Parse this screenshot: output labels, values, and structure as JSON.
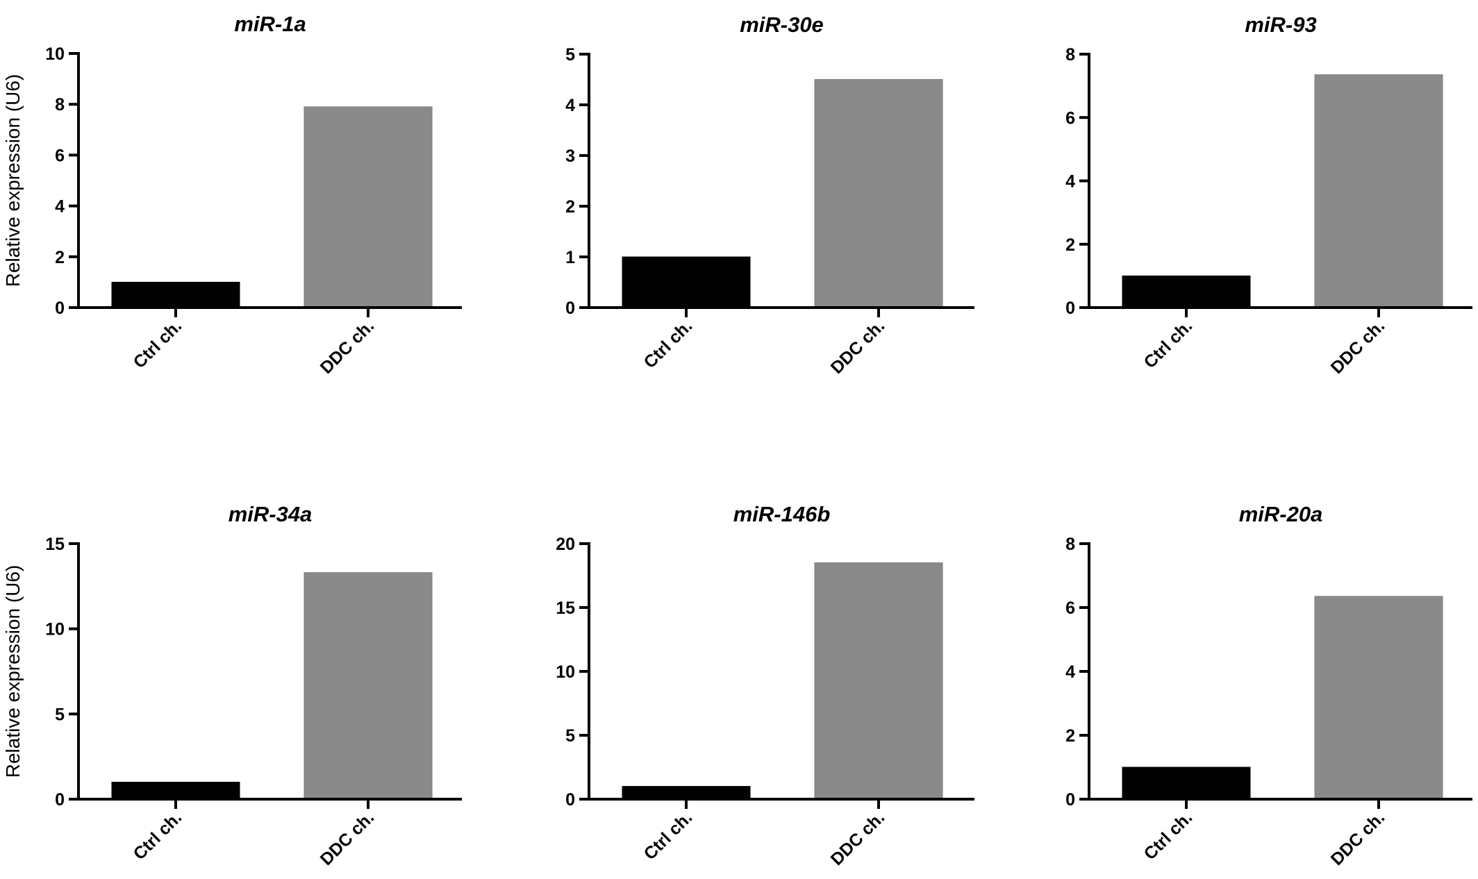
{
  "colors": {
    "ctrl_bar": "#000000",
    "ddc_bar": "#8a8a8a",
    "axis": "#000000",
    "background": "#ffffff"
  },
  "chart_data": [
    {
      "type": "bar",
      "title": "miR-1a",
      "ylabel": "Relative expression (U6)",
      "categories": [
        "Ctrl ch.",
        "DDC ch."
      ],
      "values": [
        1.0,
        7.9
      ],
      "ylim": [
        0,
        10
      ],
      "yticks": [
        "0",
        "2",
        "4",
        "6",
        "8",
        "10"
      ],
      "grid": false
    },
    {
      "type": "bar",
      "title": "miR-30e",
      "ylabel": "",
      "categories": [
        "Ctrl ch.",
        "DDC ch."
      ],
      "values": [
        1.0,
        4.5
      ],
      "ylim": [
        0,
        5
      ],
      "yticks": [
        "0",
        "1",
        "2",
        "3",
        "4",
        "5"
      ],
      "grid": false
    },
    {
      "type": "bar",
      "title": "miR-93",
      "ylabel": "",
      "categories": [
        "Ctrl ch.",
        "DDC ch."
      ],
      "values": [
        1.0,
        7.35
      ],
      "ylim": [
        0,
        8
      ],
      "yticks": [
        "0",
        "2",
        "4",
        "6",
        "8"
      ],
      "grid": false
    },
    {
      "type": "bar",
      "title": "miR-34a",
      "ylabel": "Relative expression (U6)",
      "categories": [
        "Ctrl ch.",
        "DDC ch."
      ],
      "values": [
        1.0,
        13.3
      ],
      "ylim": [
        0,
        15
      ],
      "yticks": [
        "0",
        "5",
        "10",
        "15"
      ],
      "grid": false
    },
    {
      "type": "bar",
      "title": "miR-146b",
      "ylabel": "",
      "categories": [
        "Ctrl ch.",
        "DDC ch."
      ],
      "values": [
        1.0,
        18.5
      ],
      "ylim": [
        0,
        20
      ],
      "yticks": [
        "0",
        "5",
        "10",
        "15",
        "20"
      ],
      "grid": false
    },
    {
      "type": "bar",
      "title": "miR-20a",
      "ylabel": "",
      "categories": [
        "Ctrl ch.",
        "DDC ch."
      ],
      "values": [
        1.0,
        6.35
      ],
      "ylim": [
        0,
        8
      ],
      "yticks": [
        "0",
        "2",
        "4",
        "6",
        "8"
      ],
      "grid": false
    }
  ]
}
